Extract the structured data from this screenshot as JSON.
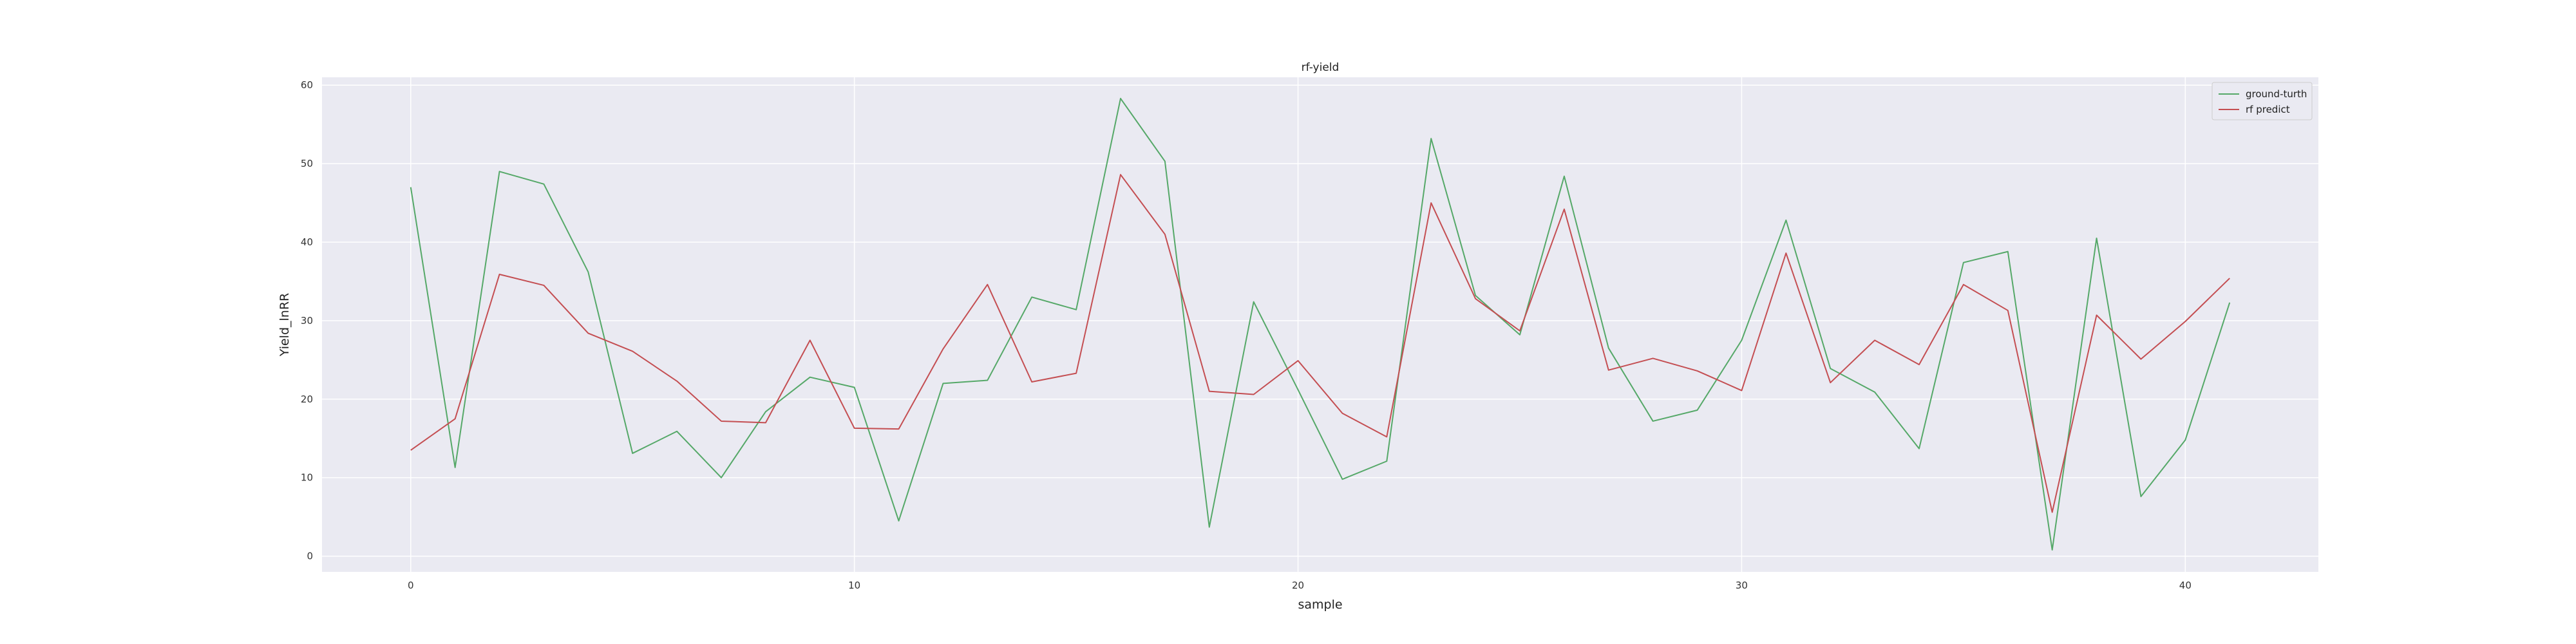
{
  "chart_data": {
    "type": "line",
    "title": "rf-yield",
    "xlabel": "sample",
    "ylabel": "Yield_lnRR",
    "xlim": [
      -2,
      43
    ],
    "ylim": [
      -2,
      61
    ],
    "xticks": [
      0,
      10,
      20,
      30,
      40
    ],
    "yticks": [
      0,
      10,
      20,
      30,
      40,
      50,
      60
    ],
    "grid": true,
    "legend_position": "top-right",
    "x": [
      0,
      1,
      2,
      3,
      4,
      5,
      6,
      7,
      8,
      9,
      10,
      11,
      12,
      13,
      14,
      15,
      16,
      17,
      18,
      19,
      20,
      21,
      22,
      23,
      24,
      25,
      26,
      27,
      28,
      29,
      30,
      31,
      32,
      33,
      34,
      35,
      36,
      37,
      38,
      39,
      40,
      41
    ],
    "series": [
      {
        "name": "ground-turth",
        "color": "#55a868",
        "values": [
          47.0,
          11.3,
          49.0,
          47.4,
          36.2,
          13.1,
          15.9,
          10.0,
          18.4,
          22.8,
          21.5,
          4.5,
          22.0,
          22.4,
          33.0,
          31.4,
          58.3,
          50.3,
          3.7,
          32.4,
          21.2,
          9.8,
          12.1,
          53.2,
          33.2,
          28.2,
          48.4,
          26.5,
          17.2,
          18.6,
          27.5,
          42.8,
          23.9,
          20.9,
          13.7,
          37.4,
          38.8,
          0.8,
          40.5,
          7.6,
          14.8,
          32.3
        ]
      },
      {
        "name": "rf predict",
        "color": "#c44e52",
        "values": [
          13.5,
          17.5,
          35.9,
          34.5,
          28.4,
          26.1,
          22.3,
          17.2,
          17.0,
          27.5,
          16.3,
          16.2,
          26.4,
          34.6,
          22.2,
          23.3,
          48.6,
          41.0,
          21.0,
          20.6,
          24.9,
          18.2,
          15.2,
          45.0,
          32.8,
          28.7,
          44.2,
          23.7,
          25.2,
          23.6,
          21.1,
          38.6,
          22.1,
          27.5,
          24.4,
          34.6,
          31.3,
          5.6,
          30.7,
          25.1,
          29.9,
          35.4
        ]
      }
    ]
  }
}
